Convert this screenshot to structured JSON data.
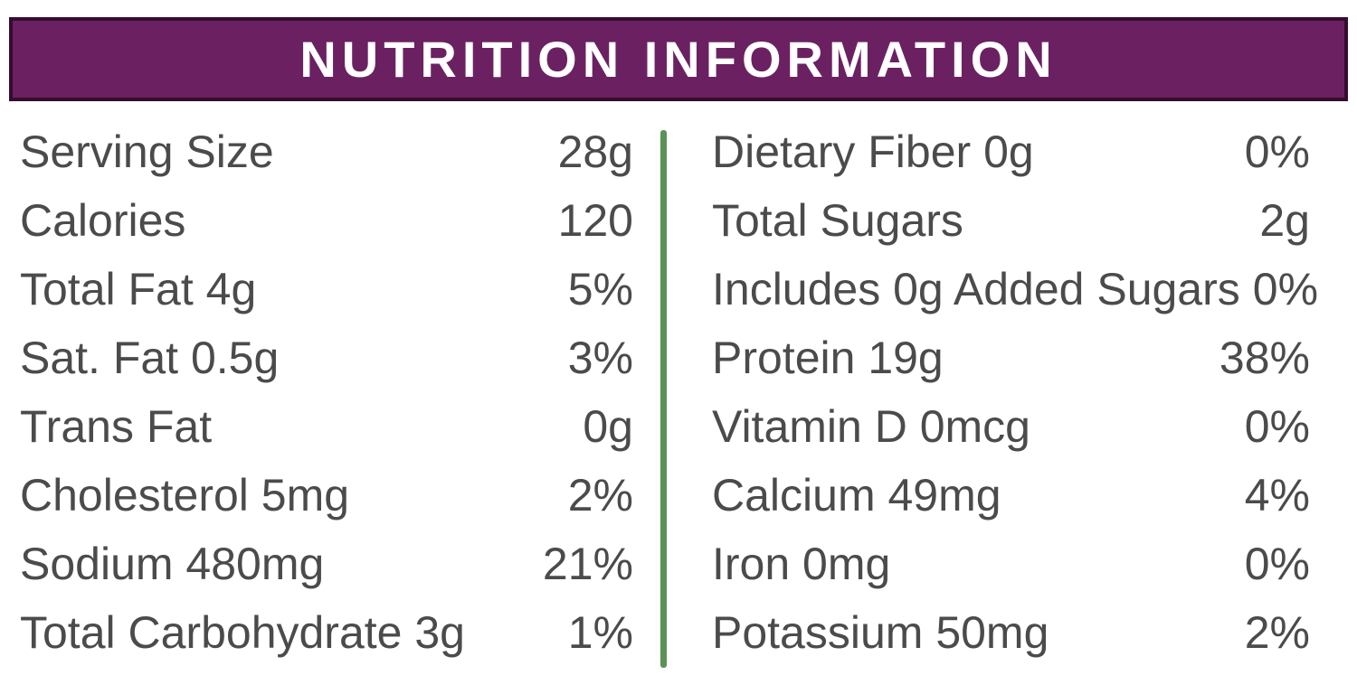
{
  "header": {
    "title": "NUTRITION INFORMATION"
  },
  "colors": {
    "page_bg": "#FFFFFF",
    "header_bg": "#6B2161",
    "header_border": "#350C30",
    "header_text": "#FFFFFF",
    "text": "#4B4B4B",
    "divider": "#5C9258"
  },
  "left_column": {
    "rows": [
      {
        "label": "Serving Size",
        "value": "28g"
      },
      {
        "label": "Calories",
        "value": "120"
      },
      {
        "label": "Total Fat 4g",
        "value": "5%"
      },
      {
        "label": "Sat. Fat 0.5g",
        "value": "3%"
      },
      {
        "label": "Trans Fat",
        "value": "0g"
      },
      {
        "label": "Cholesterol 5mg",
        "value": "2%"
      },
      {
        "label": "Sodium 480mg",
        "value": "21%"
      },
      {
        "label": "Total Carbohydrate 3g",
        "value": "1%"
      }
    ]
  },
  "right_column": {
    "rows": [
      {
        "label": "Dietary Fiber 0g",
        "value": "0%"
      },
      {
        "label": "Total Sugars",
        "value": "2g"
      },
      {
        "label": "Includes 0g Added Sugars",
        "value": "0%"
      },
      {
        "label": "Protein 19g",
        "value": "38%"
      },
      {
        "label": "Vitamin D 0mcg",
        "value": "0%"
      },
      {
        "label": "Calcium 49mg",
        "value": "4%"
      },
      {
        "label": "Iron 0mg",
        "value": "0%"
      },
      {
        "label": "Potassium 50mg",
        "value": "2%"
      }
    ]
  }
}
